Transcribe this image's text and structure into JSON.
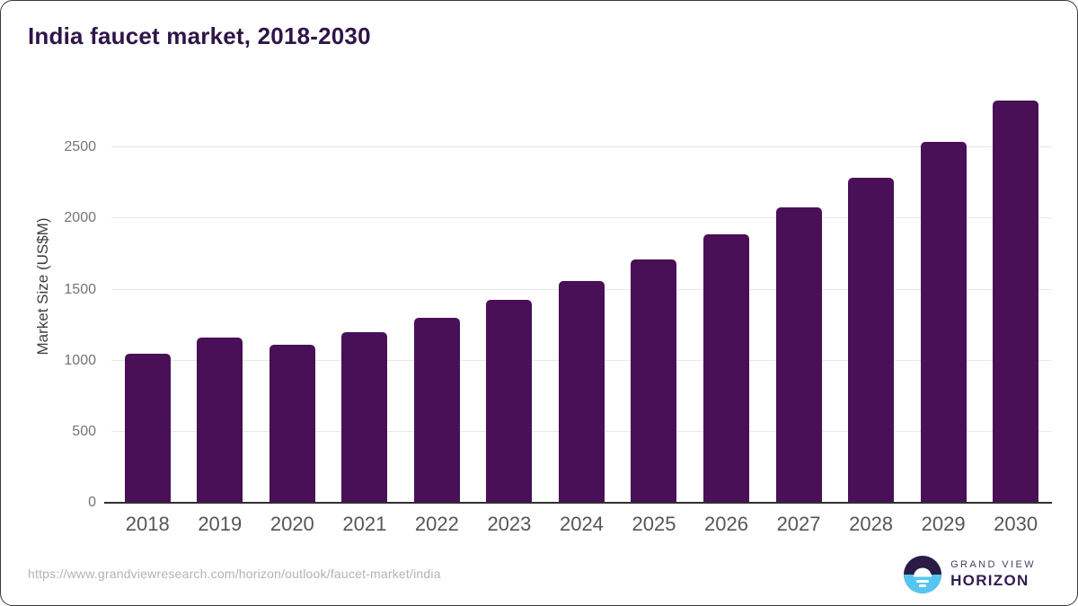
{
  "header": {
    "title": "India faucet market, 2018-2030"
  },
  "chart_data": {
    "type": "bar",
    "title": "India faucet market, 2018-2030",
    "xlabel": "",
    "ylabel": "Market Size (US$M)",
    "categories": [
      "2018",
      "2019",
      "2020",
      "2021",
      "2022",
      "2023",
      "2024",
      "2025",
      "2026",
      "2027",
      "2028",
      "2029",
      "2030"
    ],
    "values": [
      1050,
      1160,
      1110,
      1200,
      1300,
      1430,
      1560,
      1715,
      1890,
      2080,
      2290,
      2540,
      2830
    ],
    "ylim": [
      0,
      2900
    ],
    "yticks": [
      0,
      500,
      1000,
      1500,
      2000,
      2500
    ],
    "grid": true,
    "legend_position": "none",
    "bar_color": "#491057"
  },
  "footer": {
    "source_url": "https://www.grandviewresearch.com/horizon/outlook/faucet-market/india",
    "logo": {
      "top": "GRAND VIEW",
      "bottom": "HORIZON"
    }
  },
  "colors": {
    "title_text": "#2e1548",
    "bar": "#491057",
    "axis_line": "#303030",
    "gridline": "#e8e8e8",
    "y_tick_label": "#757575",
    "x_tick_label": "#565656",
    "axis_title": "#3d3d3d",
    "url_text": "#b3b3b3",
    "logo_dark": "#2a1b47",
    "logo_blue": "#56c6f0"
  }
}
